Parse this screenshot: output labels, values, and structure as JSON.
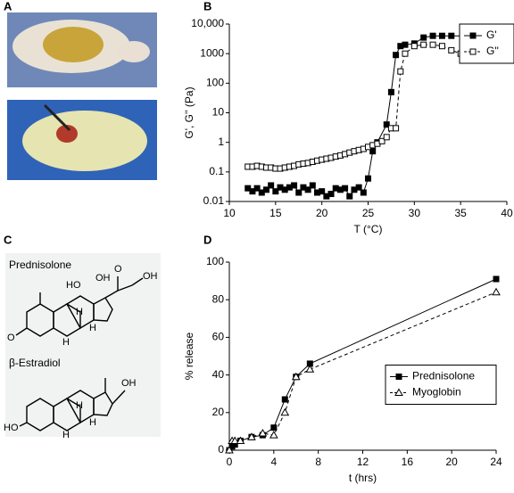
{
  "panel_labels": [
    "A",
    "B",
    "C",
    "D"
  ],
  "structures": [
    {
      "name": "Prednisolone",
      "atoms": [
        "HO",
        "OH",
        "O",
        "OH",
        "O",
        "H",
        "H",
        "H"
      ]
    },
    {
      "name": "β-Estradiol",
      "atoms": [
        "OH",
        "HO",
        "H",
        "H",
        "H"
      ]
    }
  ],
  "chart_data": [
    {
      "type": "line",
      "xlabel": "T (°C)",
      "ylabel": "G', G'' (Pa)",
      "ylog": true,
      "xlim": [
        10,
        40
      ],
      "xticks": [
        10,
        15,
        20,
        25,
        30,
        35,
        40
      ],
      "ylim": [
        0.01,
        10000
      ],
      "yticks": [
        0.01,
        0.1,
        1,
        10,
        100,
        1000,
        {
          "value": 10000,
          "label": "10,000"
        }
      ],
      "legend": "top-right",
      "series": [
        {
          "name": "G'",
          "color": "#000000",
          "marker": "square-filled",
          "dash": false,
          "x": [
            12,
            12.5,
            13,
            13.5,
            14,
            14.5,
            15,
            15.5,
            16,
            16.5,
            17,
            17.5,
            18,
            18.5,
            19,
            19.5,
            20,
            20.5,
            21,
            21.5,
            22,
            22.5,
            23,
            23.5,
            24,
            24.5,
            25,
            25.5,
            26,
            27,
            27.5,
            28,
            28.5,
            29,
            30,
            31,
            32,
            33,
            34,
            35.5
          ],
          "values": [
            0.028,
            0.022,
            0.028,
            0.02,
            0.025,
            0.035,
            0.022,
            0.03,
            0.025,
            0.03,
            0.035,
            0.02,
            0.03,
            0.025,
            0.035,
            0.02,
            0.022,
            0.015,
            0.018,
            0.028,
            0.025,
            0.028,
            0.015,
            0.025,
            0.03,
            0.02,
            0.06,
            0.5,
            1,
            4,
            50,
            900,
            1800,
            2000,
            2200,
            3500,
            4000,
            4000,
            4000,
            4000
          ]
        },
        {
          "name": "G''",
          "color": "#000000",
          "marker": "square-open",
          "dash": true,
          "x": [
            12,
            12.5,
            13,
            13.5,
            14,
            14.5,
            15,
            15.5,
            16,
            16.5,
            17,
            17.5,
            18,
            18.5,
            19,
            19.5,
            20,
            20.5,
            21,
            21.5,
            22,
            22.5,
            23,
            23.5,
            24,
            24.5,
            25,
            25.5,
            26,
            26.5,
            27,
            27.5,
            28,
            28.5,
            29,
            30,
            31,
            32,
            33,
            34,
            35,
            35.5
          ],
          "values": [
            0.15,
            0.15,
            0.16,
            0.15,
            0.14,
            0.14,
            0.13,
            0.13,
            0.14,
            0.15,
            0.16,
            0.18,
            0.19,
            0.2,
            0.22,
            0.24,
            0.26,
            0.28,
            0.3,
            0.33,
            0.36,
            0.4,
            0.45,
            0.5,
            0.55,
            0.6,
            0.7,
            0.8,
            0.9,
            1.1,
            1.5,
            3,
            3,
            250,
            1000,
            1800,
            2000,
            2000,
            1800,
            1300,
            1000,
            1000
          ]
        }
      ]
    },
    {
      "type": "line",
      "xlabel": "t (hrs)",
      "ylabel": "% release",
      "ylog": false,
      "xlim": [
        0,
        24
      ],
      "xticks": [
        0,
        4,
        8,
        12,
        16,
        20,
        24
      ],
      "ylim": [
        0,
        100
      ],
      "yticks": [
        0,
        20,
        40,
        60,
        80,
        100
      ],
      "legend": "center-right",
      "series": [
        {
          "name": "Prednisolone",
          "color": "#000000",
          "marker": "square-filled",
          "dash": false,
          "x": [
            0,
            0.25,
            0.5,
            1,
            2,
            3,
            4,
            5,
            6,
            7.25,
            24
          ],
          "values": [
            0,
            2,
            3,
            5,
            7,
            8,
            12,
            27,
            39,
            46,
            91
          ]
        },
        {
          "name": "Myoglobin",
          "color": "#000000",
          "marker": "triangle-open",
          "dash": true,
          "x": [
            0,
            0.25,
            0.5,
            1,
            2,
            3,
            4,
            5,
            6,
            7.25,
            24
          ],
          "values": [
            0,
            5,
            5,
            5,
            7,
            9,
            8,
            20,
            39,
            43,
            84
          ]
        }
      ]
    }
  ]
}
